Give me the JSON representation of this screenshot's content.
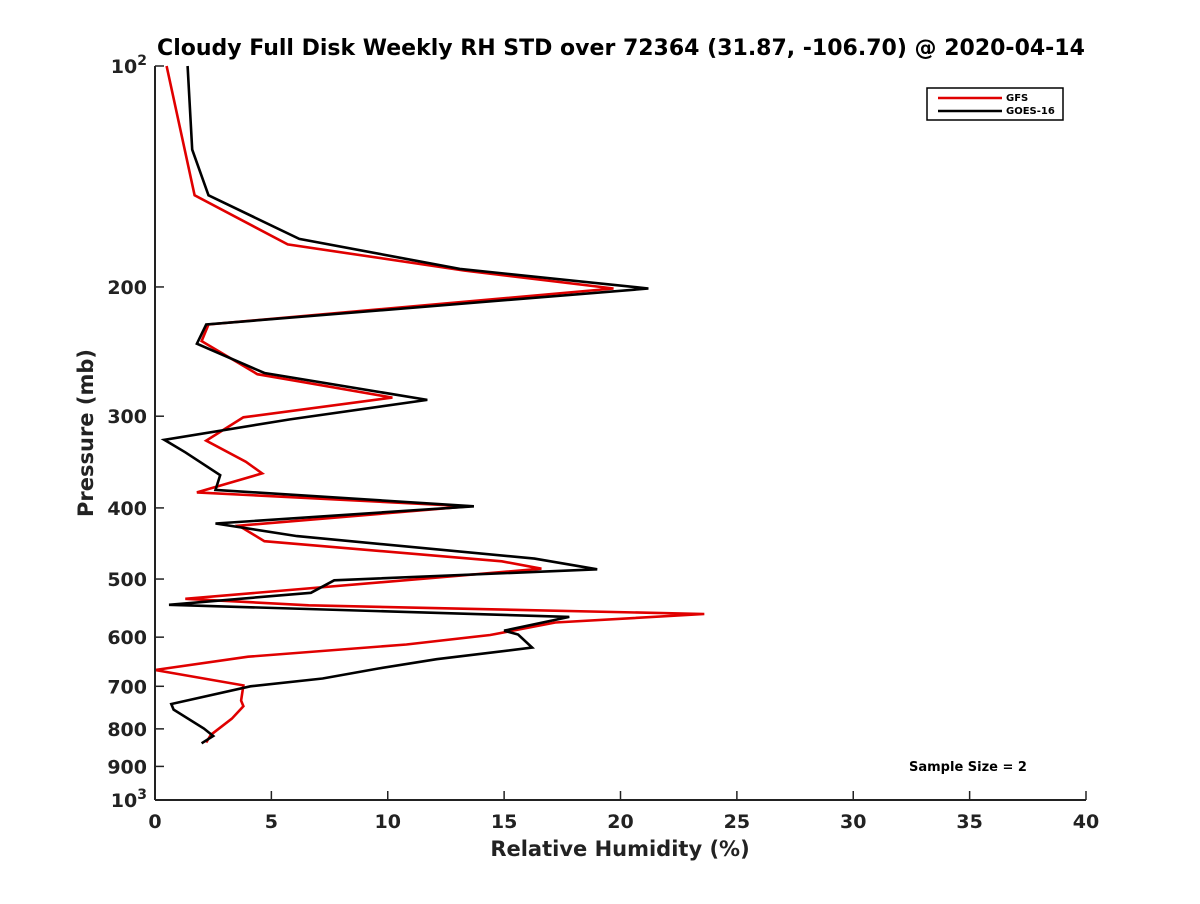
{
  "chart_data": {
    "type": "line",
    "title": "Cloudy Full Disk Weekly RH STD over 72364 (31.87, -106.70) @ 2020-04-14",
    "xlabel": "Relative Humidity (%)",
    "ylabel": "Pressure (mb)",
    "xlim": [
      0,
      40
    ],
    "ylim": [
      100,
      1000
    ],
    "y_scale": "log",
    "y_reversed": true,
    "grid": false,
    "legend_position": "top-right",
    "x_ticks": [
      0,
      5,
      10,
      15,
      20,
      25,
      30,
      35,
      40
    ],
    "x_tick_labels": [
      "0",
      "5",
      "10",
      "15",
      "20",
      "25",
      "30",
      "35",
      "40"
    ],
    "y_ticks": [
      100,
      200,
      300,
      400,
      500,
      600,
      700,
      800,
      900,
      1000
    ],
    "y_tick_labels": [
      {
        "base": "10",
        "sup": "2"
      },
      {
        "base": "200",
        "sup": ""
      },
      {
        "base": "300",
        "sup": ""
      },
      {
        "base": "400",
        "sup": ""
      },
      {
        "base": "500",
        "sup": ""
      },
      {
        "base": "600",
        "sup": ""
      },
      {
        "base": "700",
        "sup": ""
      },
      {
        "base": "800",
        "sup": ""
      },
      {
        "base": "900",
        "sup": ""
      },
      {
        "base": "10",
        "sup": "3"
      }
    ],
    "annotation": "Sample Size = 2",
    "series": [
      {
        "name": "GFS",
        "color": "#e00000",
        "points": [
          [
            0.5,
            100
          ],
          [
            1.7,
            150
          ],
          [
            5.7,
            175
          ],
          [
            13.3,
            190
          ],
          [
            19.7,
            201
          ],
          [
            2.3,
            225
          ],
          [
            2.0,
            237
          ],
          [
            4.4,
            263
          ],
          [
            10.2,
            283
          ],
          [
            3.8,
            301
          ],
          [
            2.2,
            324
          ],
          [
            3.9,
            346
          ],
          [
            4.6,
            359
          ],
          [
            1.8,
            381
          ],
          [
            13.5,
            398
          ],
          [
            3.6,
            423
          ],
          [
            4.7,
            444
          ],
          [
            14.9,
            473
          ],
          [
            16.6,
            484
          ],
          [
            1.3,
            532
          ],
          [
            6.6,
            543
          ],
          [
            23.6,
            558
          ],
          [
            17.2,
            573
          ],
          [
            14.4,
            596
          ],
          [
            10.8,
            614
          ],
          [
            4.0,
            638
          ],
          [
            0.0,
            665
          ],
          [
            3.8,
            698
          ],
          [
            3.7,
            732
          ],
          [
            3.8,
            745
          ],
          [
            3.3,
            775
          ],
          [
            2.4,
            815
          ],
          [
            2.2,
            835
          ]
        ]
      },
      {
        "name": "GOES-16",
        "color": "#000000",
        "points": [
          [
            1.4,
            100
          ],
          [
            1.6,
            130
          ],
          [
            2.3,
            150
          ],
          [
            6.2,
            172
          ],
          [
            13.1,
            189
          ],
          [
            21.2,
            201
          ],
          [
            2.2,
            225
          ],
          [
            1.8,
            239
          ],
          [
            4.7,
            262
          ],
          [
            11.7,
            285
          ],
          [
            5.8,
            303
          ],
          [
            0.4,
            323
          ],
          [
            1.3,
            336
          ],
          [
            2.8,
            361
          ],
          [
            2.6,
            378
          ],
          [
            13.7,
            398
          ],
          [
            2.6,
            420
          ],
          [
            6.1,
            437
          ],
          [
            16.3,
            469
          ],
          [
            19.0,
            485
          ],
          [
            7.7,
            502
          ],
          [
            6.7,
            522
          ],
          [
            0.6,
            542
          ],
          [
            17.8,
            563
          ],
          [
            15.0,
            588
          ],
          [
            15.6,
            595
          ],
          [
            16.2,
            620
          ],
          [
            12.1,
            643
          ],
          [
            9.6,
            662
          ],
          [
            7.2,
            683
          ],
          [
            4.1,
            700
          ],
          [
            0.7,
            740
          ],
          [
            0.8,
            753
          ],
          [
            2.1,
            799
          ],
          [
            2.5,
            818
          ],
          [
            2.0,
            837
          ]
        ]
      }
    ]
  }
}
